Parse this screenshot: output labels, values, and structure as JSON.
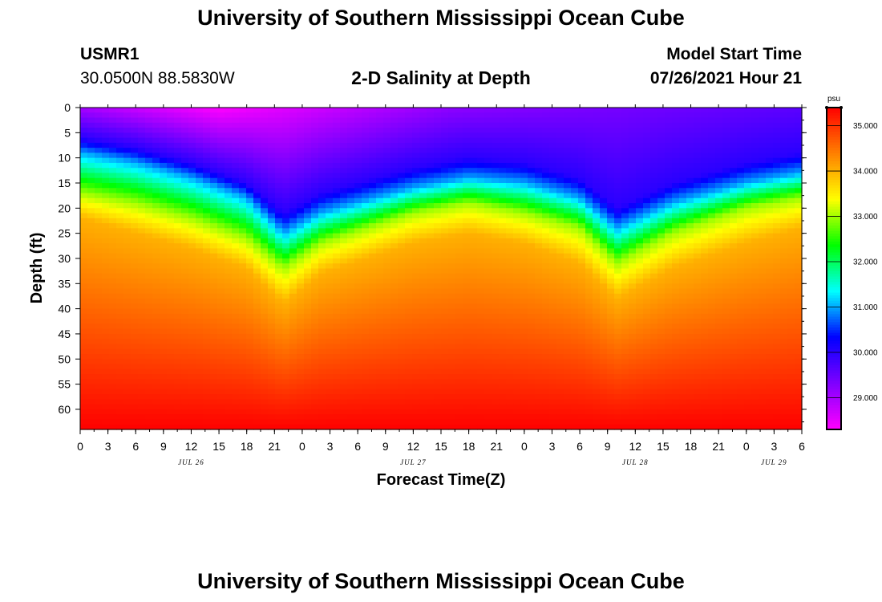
{
  "header": {
    "title": "University of Southern Mississippi Ocean Cube",
    "station_id": "USMR1",
    "coordinates": "30.0500N  88.5830W",
    "plot_title": "2-D Salinity at Depth",
    "model_start_label": "Model Start Time",
    "model_start_value": "07/26/2021 Hour 21"
  },
  "footer": {
    "title": "University of Southern Mississippi Ocean Cube"
  },
  "colors": {
    "palette": [
      "#ff00ff",
      "#7f00ff",
      "#0000ff",
      "#00ffff",
      "#00ff00",
      "#ffff00",
      "#ff8000",
      "#ff0000"
    ]
  },
  "chart_data": {
    "type": "heatmap",
    "title": "2-D Salinity at Depth",
    "xlabel": "Forecast Time(Z)",
    "ylabel": "Depth (ft)",
    "y_range": [
      0,
      64
    ],
    "y_ticks": [
      "0",
      "5",
      "10",
      "15",
      "20",
      "25",
      "30",
      "35",
      "40",
      "45",
      "50",
      "55",
      "60"
    ],
    "x_ticks": [
      "0",
      "3",
      "6",
      "9",
      "12",
      "15",
      "18",
      "21",
      "0",
      "3",
      "6",
      "9",
      "12",
      "15",
      "18",
      "21",
      "0",
      "3",
      "6",
      "9",
      "12",
      "15",
      "18",
      "21",
      "0",
      "3",
      "6"
    ],
    "date_labels": [
      {
        "label": "JUL 26",
        "hours_from_start": 12
      },
      {
        "label": "JUL 27",
        "hours_from_start": 36
      },
      {
        "label": "JUL 28",
        "hours_from_start": 60
      },
      {
        "label": "JUL 29",
        "hours_from_start": 75
      }
    ],
    "colorbar": {
      "unit": "psu",
      "range": [
        28.3,
        35.4
      ],
      "ticks": [
        "29.000",
        "30.000",
        "31.000",
        "32.000",
        "33.000",
        "34.000",
        "35.000"
      ]
    },
    "isohaline_depths": {
      "hours": [
        0,
        6,
        12,
        18,
        22,
        26,
        36,
        42,
        48,
        54,
        58,
        64,
        72,
        78
      ],
      "psu_30": [
        6,
        8,
        11,
        15,
        21,
        17,
        12,
        10,
        11,
        14,
        20,
        15,
        11,
        9
      ],
      "psu_31": [
        9,
        11,
        14,
        18,
        25,
        21,
        16,
        14,
        15,
        18,
        24,
        19,
        15,
        13
      ],
      "psu_33": [
        17,
        19,
        22,
        26,
        32,
        27,
        21,
        19,
        21,
        24,
        31,
        25,
        20,
        18
      ],
      "psu_34": [
        22,
        25,
        28,
        32,
        39,
        33,
        27,
        25,
        27,
        31,
        38,
        32,
        27,
        24
      ]
    },
    "surface_min_psu": [
      {
        "hour": 0,
        "value": 29.0
      },
      {
        "hour": 15,
        "value": 28.3
      },
      {
        "hour": 40,
        "value": 29.2
      },
      {
        "hour": 78,
        "value": 29.6
      }
    ],
    "bottom_psu": 35.4
  }
}
